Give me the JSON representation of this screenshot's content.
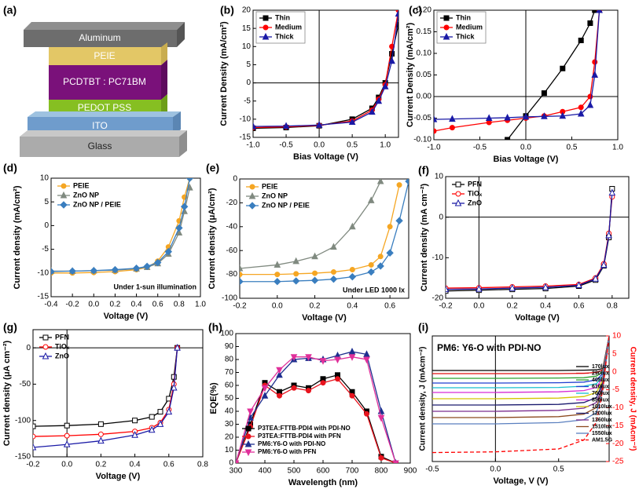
{
  "device_stack": {
    "label": "(a)",
    "layers": [
      "Aluminum",
      "PEIE",
      "PCDTBT : PC71BM",
      "PEDOT PSS",
      "ITO",
      "Glass"
    ]
  },
  "chart_data": [
    {
      "label": "(b)",
      "type": "line",
      "xlabel": "Bias Voltage (V)",
      "ylabel": "Current Density (mA/cm²)",
      "x": [
        -1,
        -0.5,
        0,
        0.5,
        0.8,
        0.9,
        1.0,
        1.1,
        1.2
      ],
      "xlim": [
        -1,
        1.2
      ],
      "xticks": [
        {
          "value": -1,
          "label": "-1.0"
        },
        -0.5,
        {
          "value": 0,
          "label": "0.0"
        },
        0.5,
        {
          "value": 1,
          "label": "1.0"
        }
      ],
      "ylim": [
        -15,
        20
      ],
      "yticks": [
        -15,
        -10,
        -5,
        0,
        5,
        10,
        15,
        20
      ],
      "axes_at_zero": true,
      "legend": "upper left",
      "legend_frame": true,
      "series": [
        {
          "name": "Thin",
          "color": "#000000",
          "marker": "square",
          "values": [
            -12.5,
            -12.3,
            -11.8,
            -10,
            -7,
            -4,
            0,
            8,
            16
          ]
        },
        {
          "name": "Medium",
          "color": "#ff0000",
          "marker": "circle",
          "values": [
            -12.3,
            -12.1,
            -11.7,
            -10.5,
            -7.5,
            -4.5,
            -0.5,
            10,
            20
          ]
        },
        {
          "name": "Thick",
          "color": "#1a1aa6",
          "marker": "triangle",
          "values": [
            -12,
            -11.9,
            -11.6,
            -10.8,
            -8,
            -5,
            -1,
            6,
            19
          ]
        }
      ]
    },
    {
      "label": "(c)",
      "type": "line",
      "xlabel": "Bias Voltage (V)",
      "ylabel": "Current Density (mA/cm²)",
      "x": [
        -1,
        -0.8,
        -0.4,
        -0.2,
        0,
        0.2,
        0.4,
        0.6,
        0.7,
        0.75,
        0.8
      ],
      "xlim": [
        -1,
        1
      ],
      "xticks": [
        {
          "value": -1,
          "label": "-1.0"
        },
        -0.5,
        {
          "value": 0,
          "label": "0.0"
        },
        0.5,
        {
          "value": 1,
          "label": "1.0"
        }
      ],
      "ylim": [
        -0.1,
        0.2
      ],
      "yticks": [
        {
          "value": -0.1,
          "label": "-0.10"
        },
        -0.05,
        {
          "value": 0,
          "label": "0.00"
        },
        0.05,
        {
          "value": 0.1,
          "label": "0.10"
        },
        0.15,
        {
          "value": 0.2,
          "label": "0.20"
        }
      ],
      "axes_at_zero": true,
      "legend": "upper left",
      "legend_frame": true,
      "series": [
        {
          "name": "Thin",
          "color": "#000000",
          "marker": "square",
          "values": [
            null,
            null,
            null,
            -0.1,
            -0.045,
            0.008,
            0.065,
            0.13,
            0.17,
            0.2,
            null
          ]
        },
        {
          "name": "Medium",
          "color": "#ff0000",
          "marker": "circle",
          "values": [
            -0.08,
            -0.072,
            -0.06,
            -0.055,
            -0.05,
            -0.045,
            -0.035,
            -0.025,
            0,
            0.08,
            0.2
          ]
        },
        {
          "name": "Thick",
          "color": "#1a1aa6",
          "marker": "triangle",
          "values": [
            -0.053,
            -0.052,
            -0.05,
            -0.049,
            -0.047,
            -0.046,
            -0.045,
            -0.04,
            -0.02,
            0.05,
            0.2
          ]
        }
      ]
    },
    {
      "label": "(d)",
      "type": "line",
      "xlabel": "Voltage (V)",
      "ylabel": "Current density (mA/cm²)",
      "annotation": "Under 1-sun illumination",
      "x": [
        -0.4,
        -0.2,
        0,
        0.2,
        0.4,
        0.5,
        0.6,
        0.7,
        0.8,
        0.85,
        0.9
      ],
      "xlim": [
        -0.4,
        1
      ],
      "xticks": [
        -0.4,
        -0.2,
        {
          "value": 0,
          "label": "0.0"
        },
        0.2,
        0.4,
        0.6,
        0.8,
        {
          "value": 1,
          "label": "1.0"
        }
      ],
      "ylim": [
        -15,
        10
      ],
      "yticks": [
        -15,
        -10,
        -5,
        0,
        5,
        10
      ],
      "legend": "upper left",
      "series": [
        {
          "name": "PEIE",
          "color": "#f5a623",
          "marker": "circle",
          "values": [
            -10,
            -10,
            -9.9,
            -9.7,
            -9.3,
            -8.8,
            -7.5,
            -4.5,
            1,
            6,
            10
          ]
        },
        {
          "name": "ZnO NP",
          "color": "#808a80",
          "marker": "triangle",
          "values": [
            -9.6,
            -9.6,
            -9.5,
            -9.4,
            -9.1,
            -8.8,
            -8,
            -6,
            -1.5,
            3,
            8
          ]
        },
        {
          "name": "ZnO NP / PEIE",
          "color": "#3a7ebf",
          "marker": "diamond",
          "values": [
            -9.7,
            -9.6,
            -9.5,
            -9.3,
            -9,
            -8.6,
            -7.8,
            -5.5,
            -0.5,
            4,
            10
          ]
        }
      ]
    },
    {
      "label": "(e)",
      "type": "line",
      "xlabel": "Voltage (V)",
      "ylabel": "Current density (μA/cm²)",
      "annotation": "Under LED 1000 lx",
      "x": [
        -0.2,
        0,
        0.1,
        0.2,
        0.3,
        0.4,
        0.5,
        0.55,
        0.6,
        0.65,
        0.7
      ],
      "xlim": [
        -0.2,
        0.7
      ],
      "xticks": [
        -0.2,
        {
          "value": 0,
          "label": "0.0"
        },
        0.2,
        0.4,
        0.6
      ],
      "ylim": [
        -100,
        0
      ],
      "yticks": [
        -100,
        -80,
        -60,
        -40,
        -20,
        0
      ],
      "legend": "upper left",
      "series": [
        {
          "name": "PEIE",
          "color": "#f5a623",
          "marker": "circle",
          "values": [
            -80,
            -80,
            -79.5,
            -79,
            -78,
            -76,
            -72,
            -65,
            -40,
            -5,
            null
          ]
        },
        {
          "name": "ZnO NP",
          "color": "#808a80",
          "marker": "triangle",
          "values": [
            -75,
            -72,
            -69,
            -65,
            -57,
            -40,
            -18,
            -2,
            null,
            null,
            null
          ]
        },
        {
          "name": "ZnO NP / PEIE",
          "color": "#3a7ebf",
          "marker": "diamond",
          "values": [
            -86,
            -86,
            -85.5,
            -85,
            -84,
            -82,
            -78,
            -73,
            -62,
            -35,
            -2
          ]
        }
      ]
    },
    {
      "label": "(f)",
      "type": "line",
      "xlabel": "Voltage (V)",
      "ylabel": "Current density (mA cm⁻²)",
      "x": [
        -0.2,
        0,
        0.2,
        0.4,
        0.6,
        0.7,
        0.75,
        0.78,
        0.8
      ],
      "xlim": [
        -0.2,
        0.9
      ],
      "xticks": [
        -0.2,
        {
          "value": 0,
          "label": "0.0"
        },
        0.2,
        0.4,
        0.6,
        0.8
      ],
      "ylim": [
        -20,
        10
      ],
      "yticks": [
        -20,
        -10,
        0,
        10
      ],
      "axes_at_zero": true,
      "open_markers": true,
      "legend": "upper left",
      "series": [
        {
          "name": "PFN",
          "color": "#000000",
          "marker": "square",
          "values": [
            -18.2,
            -18,
            -17.8,
            -17.6,
            -17,
            -15.5,
            -12,
            -5,
            7
          ]
        },
        {
          "name": "TiOₓ",
          "color": "#ff0000",
          "marker": "circle",
          "values": [
            -17.5,
            -17.4,
            -17.2,
            -17,
            -16.6,
            -15,
            -11.5,
            -4,
            5
          ]
        },
        {
          "name": "ZnO",
          "color": "#1a1aa6",
          "marker": "triangle",
          "values": [
            -17.8,
            -17.7,
            -17.5,
            -17.3,
            -16.8,
            -15.2,
            -11.8,
            -4.5,
            6
          ]
        }
      ]
    },
    {
      "label": "(g)",
      "type": "line",
      "xlabel": "Voltage (V)",
      "ylabel": "Current density (μA cm⁻²)",
      "x": [
        -0.2,
        0,
        0.2,
        0.4,
        0.5,
        0.55,
        0.6,
        0.63,
        0.65
      ],
      "xlim": [
        -0.2,
        0.8
      ],
      "xticks": [
        -0.2,
        {
          "value": 0,
          "label": "0.0"
        },
        0.2,
        0.4,
        0.6,
        0.8
      ],
      "ylim": [
        -150,
        25
      ],
      "yticks": [
        -150,
        -100,
        -50,
        0
      ],
      "axes_at_zero": true,
      "open_markers": true,
      "legend": "upper left",
      "series": [
        {
          "name": "PFN",
          "color": "#000000",
          "marker": "square",
          "values": [
            -108,
            -107,
            -105,
            -100,
            -95,
            -88,
            -70,
            -40,
            0
          ]
        },
        {
          "name": "TiOₓ",
          "color": "#ff0000",
          "marker": "circle",
          "values": [
            -122,
            -121,
            -119,
            -115,
            -110,
            -103,
            -85,
            -50,
            0
          ]
        },
        {
          "name": "ZnO",
          "color": "#1a1aa6",
          "marker": "triangle",
          "values": [
            -137,
            -133,
            -128,
            -120,
            -113,
            -105,
            -88,
            -55,
            0
          ]
        }
      ]
    },
    {
      "label": "(h)",
      "type": "line",
      "xlabel": "Wavelength (nm)",
      "ylabel": "EQE(%)",
      "x": [
        300,
        350,
        400,
        450,
        500,
        550,
        600,
        650,
        700,
        750,
        800,
        850
      ],
      "xlim": [
        300,
        900
      ],
      "xticks": [
        300,
        400,
        500,
        600,
        700,
        800,
        900
      ],
      "ylim": [
        0,
        100
      ],
      "yticks": [
        0,
        10,
        20,
        30,
        40,
        50,
        60,
        70,
        80,
        90,
        100
      ],
      "legend": "lower left",
      "series": [
        {
          "name": "P3TEA:FTTB-PDI4 with PDI-NO",
          "color": "#000000",
          "marker": "square",
          "values": [
            0,
            30,
            62,
            55,
            60,
            58,
            65,
            68,
            55,
            40,
            5,
            0
          ]
        },
        {
          "name": "P3TEA:FTTB-PDI4 with PFN",
          "color": "#e8141e",
          "marker": "circle",
          "values": [
            0,
            28,
            60,
            52,
            58,
            56,
            62,
            65,
            52,
            38,
            4,
            0
          ]
        },
        {
          "name": "PM6:Y6-O with PDI-NO",
          "color": "#1f2f8f",
          "marker": "triangle",
          "values": [
            0,
            35,
            52,
            68,
            80,
            81,
            80,
            83,
            86,
            84,
            40,
            0
          ]
        },
        {
          "name": "PM6:Y6-O with PFN",
          "color": "#e0309a",
          "marker": "tri-down",
          "values": [
            0,
            40,
            58,
            72,
            82,
            82,
            79,
            80,
            82,
            80,
            35,
            0
          ]
        }
      ]
    },
    {
      "label": "(i)",
      "type": "line",
      "xlabel": "Voltage, V (V)",
      "ylabel": "Current density, J (mAcm⁻²)",
      "y2label": "Current density, J (mAcm⁻²)",
      "annotation": "PM6: Y6-O with PDI-NO",
      "x": [
        -0.5,
        0,
        0.5,
        0.7,
        0.8,
        0.85,
        0.9
      ],
      "xlim": [
        -0.5,
        0.9
      ],
      "xticks": [
        -0.5,
        {
          "value": 0,
          "label": "0.0"
        },
        0.5
      ],
      "ylim": [
        -0.3,
        0.1
      ],
      "y2lim": [
        -25,
        10
      ],
      "y2ticks": [
        -25,
        -20,
        -15,
        -10,
        -5,
        0,
        5,
        10
      ],
      "y2color": "#ff0000",
      "zero_x_line": true,
      "legend": "right",
      "series": [
        {
          "name": "170lux",
          "color": "#000000",
          "values": [
            -0.01,
            -0.01,
            -0.01,
            -0.009,
            -0.008,
            -0.004,
            0.1
          ]
        },
        {
          "name": "290lux",
          "color": "#e01010",
          "values": [
            -0.02,
            -0.02,
            -0.02,
            -0.019,
            -0.016,
            -0.008,
            0.1
          ]
        },
        {
          "name": "405lux",
          "color": "#2ca02c",
          "values": [
            -0.035,
            -0.035,
            -0.034,
            -0.033,
            -0.028,
            -0.014,
            0.1
          ]
        },
        {
          "name": "610lux",
          "color": "#1f3fd0",
          "values": [
            -0.05,
            -0.05,
            -0.049,
            -0.047,
            -0.04,
            -0.02,
            0.1
          ]
        },
        {
          "name": "700lux",
          "color": "#17becf",
          "values": [
            -0.065,
            -0.065,
            -0.064,
            -0.06,
            -0.052,
            -0.026,
            0.1
          ]
        },
        {
          "name": "850lux",
          "color": "#d62bd6",
          "values": [
            -0.08,
            -0.08,
            -0.078,
            -0.074,
            -0.064,
            -0.032,
            0.1
          ]
        },
        {
          "name": "1010lux",
          "color": "#d4c400",
          "values": [
            -0.1,
            -0.1,
            -0.098,
            -0.093,
            -0.08,
            -0.04,
            0.1
          ]
        },
        {
          "name": "1200lux",
          "color": "#1a1a6e",
          "values": [
            -0.12,
            -0.12,
            -0.118,
            -0.112,
            -0.096,
            -0.048,
            0.1
          ]
        },
        {
          "name": "1360lux",
          "color": "#7b2d8e",
          "values": [
            -0.14,
            -0.14,
            -0.137,
            -0.13,
            -0.112,
            -0.056,
            0.1
          ]
        },
        {
          "name": "1510lux",
          "color": "#8c4a1f",
          "values": [
            -0.16,
            -0.16,
            -0.157,
            -0.149,
            -0.128,
            -0.064,
            0.1
          ]
        },
        {
          "name": "1550lux",
          "color": "#5a7fbf",
          "values": [
            -0.18,
            -0.18,
            -0.176,
            -0.167,
            -0.144,
            -0.072,
            0.1
          ]
        },
        {
          "name": "AM1.5G",
          "color": "#ff0000",
          "dash": true,
          "axis": "y2",
          "values": [
            -22.5,
            -22.3,
            -21.5,
            -19,
            -14,
            -5,
            10
          ]
        }
      ]
    }
  ]
}
